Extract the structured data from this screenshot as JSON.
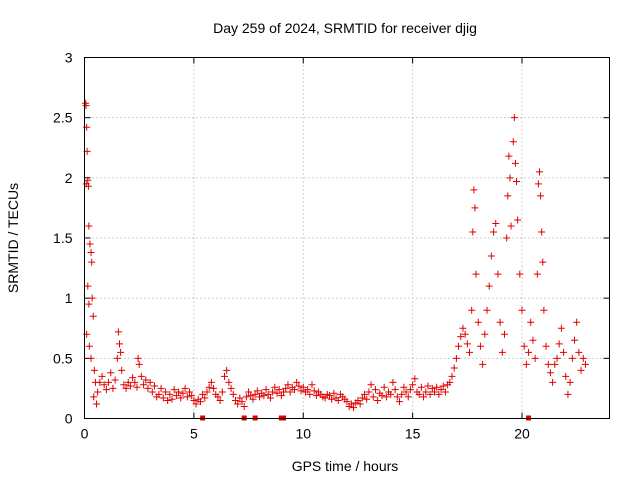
{
  "chart_data": {
    "type": "scatter",
    "title": "Day 259 of 2024, SRMTID for receiver djig",
    "xlabel": "GPS time / hours",
    "ylabel": "SRMTID / TECUs",
    "xlim": [
      0,
      24
    ],
    "ylim": [
      0,
      3
    ],
    "xticks": [
      0,
      5,
      10,
      15,
      20
    ],
    "xtick_labels": [
      "0",
      "5",
      "10",
      "15",
      "20"
    ],
    "yticks": [
      0,
      0.5,
      1,
      1.5,
      2,
      2.5,
      3
    ],
    "ytick_labels": [
      "0",
      "0.5",
      "1",
      "1.5",
      "2",
      "2.5",
      "3"
    ],
    "grid": true,
    "marker": "+",
    "series_color": "#e00000",
    "series": [
      {
        "name": "SRMTID",
        "points": [
          [
            0.05,
            2.62
          ],
          [
            0.07,
            2.6
          ],
          [
            0.1,
            2.42
          ],
          [
            0.12,
            2.22
          ],
          [
            0.08,
            1.95
          ],
          [
            0.15,
            1.98
          ],
          [
            0.18,
            1.93
          ],
          [
            0.2,
            1.6
          ],
          [
            0.25,
            1.45
          ],
          [
            0.3,
            1.38
          ],
          [
            0.33,
            1.3
          ],
          [
            0.15,
            1.1
          ],
          [
            0.35,
            1.0
          ],
          [
            0.2,
            0.95
          ],
          [
            0.4,
            0.85
          ],
          [
            0.1,
            0.7
          ],
          [
            0.22,
            0.6
          ],
          [
            0.3,
            0.5
          ],
          [
            0.45,
            0.4
          ],
          [
            0.5,
            0.3
          ],
          [
            0.42,
            0.18
          ],
          [
            0.55,
            0.12
          ],
          [
            0.6,
            0.22
          ],
          [
            0.7,
            0.3
          ],
          [
            0.8,
            0.35
          ],
          [
            0.9,
            0.28
          ],
          [
            1.0,
            0.24
          ],
          [
            1.1,
            0.3
          ],
          [
            1.2,
            0.38
          ],
          [
            1.3,
            0.25
          ],
          [
            1.4,
            0.32
          ],
          [
            1.5,
            0.5
          ],
          [
            1.55,
            0.72
          ],
          [
            1.6,
            0.62
          ],
          [
            1.65,
            0.55
          ],
          [
            1.7,
            0.4
          ],
          [
            1.8,
            0.28
          ],
          [
            1.9,
            0.25
          ],
          [
            2.0,
            0.3
          ],
          [
            2.1,
            0.27
          ],
          [
            2.2,
            0.34
          ],
          [
            2.3,
            0.3
          ],
          [
            2.4,
            0.26
          ],
          [
            2.45,
            0.5
          ],
          [
            2.5,
            0.45
          ],
          [
            2.6,
            0.35
          ],
          [
            2.7,
            0.28
          ],
          [
            2.8,
            0.32
          ],
          [
            2.9,
            0.25
          ],
          [
            3.0,
            0.3
          ],
          [
            3.1,
            0.22
          ],
          [
            3.2,
            0.27
          ],
          [
            3.3,
            0.18
          ],
          [
            3.4,
            0.2
          ],
          [
            3.5,
            0.25
          ],
          [
            3.6,
            0.17
          ],
          [
            3.7,
            0.22
          ],
          [
            3.8,
            0.15
          ],
          [
            3.9,
            0.2
          ],
          [
            4.0,
            0.16
          ],
          [
            4.1,
            0.24
          ],
          [
            4.2,
            0.19
          ],
          [
            4.3,
            0.22
          ],
          [
            4.4,
            0.17
          ],
          [
            4.5,
            0.21
          ],
          [
            4.6,
            0.25
          ],
          [
            4.7,
            0.18
          ],
          [
            4.8,
            0.22
          ],
          [
            4.9,
            0.19
          ],
          [
            5.0,
            0.15
          ],
          [
            5.1,
            0.12
          ],
          [
            5.2,
            0.16
          ],
          [
            5.3,
            0.14
          ],
          [
            5.4,
            0.2
          ],
          [
            5.5,
            0.17
          ],
          [
            5.6,
            0.22
          ],
          [
            5.7,
            0.26
          ],
          [
            5.8,
            0.3
          ],
          [
            5.9,
            0.25
          ],
          [
            6.0,
            0.2
          ],
          [
            6.1,
            0.18
          ],
          [
            6.2,
            0.15
          ],
          [
            6.3,
            0.22
          ],
          [
            6.4,
            0.35
          ],
          [
            6.5,
            0.4
          ],
          [
            6.6,
            0.3
          ],
          [
            6.7,
            0.25
          ],
          [
            6.8,
            0.2
          ],
          [
            6.9,
            0.15
          ],
          [
            7.0,
            0.12
          ],
          [
            7.1,
            0.17
          ],
          [
            7.2,
            0.14
          ],
          [
            7.3,
            0.1
          ],
          [
            7.4,
            0.18
          ],
          [
            7.5,
            0.22
          ],
          [
            7.6,
            0.19
          ],
          [
            7.7,
            0.16
          ],
          [
            7.8,
            0.2
          ],
          [
            7.9,
            0.23
          ],
          [
            8.0,
            0.18
          ],
          [
            8.1,
            0.21
          ],
          [
            8.2,
            0.19
          ],
          [
            8.3,
            0.24
          ],
          [
            8.4,
            0.2
          ],
          [
            8.5,
            0.17
          ],
          [
            8.6,
            0.22
          ],
          [
            8.7,
            0.26
          ],
          [
            8.8,
            0.21
          ],
          [
            8.9,
            0.24
          ],
          [
            9.0,
            0.19
          ],
          [
            9.1,
            0.22
          ],
          [
            9.2,
            0.25
          ],
          [
            9.3,
            0.28
          ],
          [
            9.4,
            0.22
          ],
          [
            9.5,
            0.26
          ],
          [
            9.6,
            0.24
          ],
          [
            9.7,
            0.3
          ],
          [
            9.8,
            0.27
          ],
          [
            9.9,
            0.23
          ],
          [
            10.0,
            0.26
          ],
          [
            10.1,
            0.22
          ],
          [
            10.2,
            0.24
          ],
          [
            10.3,
            0.2
          ],
          [
            10.4,
            0.28
          ],
          [
            10.5,
            0.23
          ],
          [
            10.6,
            0.19
          ],
          [
            10.7,
            0.22
          ],
          [
            10.8,
            0.2
          ],
          [
            10.9,
            0.18
          ],
          [
            11.0,
            0.17
          ],
          [
            11.1,
            0.2
          ],
          [
            11.2,
            0.19
          ],
          [
            11.3,
            0.16
          ],
          [
            11.4,
            0.21
          ],
          [
            11.5,
            0.17
          ],
          [
            11.6,
            0.15
          ],
          [
            11.7,
            0.2
          ],
          [
            11.8,
            0.18
          ],
          [
            11.9,
            0.16
          ],
          [
            12.0,
            0.14
          ],
          [
            12.1,
            0.1
          ],
          [
            12.2,
            0.12
          ],
          [
            12.3,
            0.09
          ],
          [
            12.4,
            0.13
          ],
          [
            12.5,
            0.15
          ],
          [
            12.6,
            0.12
          ],
          [
            12.7,
            0.17
          ],
          [
            12.8,
            0.2
          ],
          [
            12.9,
            0.16
          ],
          [
            13.0,
            0.22
          ],
          [
            13.1,
            0.28
          ],
          [
            13.2,
            0.18
          ],
          [
            13.3,
            0.24
          ],
          [
            13.4,
            0.15
          ],
          [
            13.5,
            0.21
          ],
          [
            13.6,
            0.19
          ],
          [
            13.7,
            0.26
          ],
          [
            13.8,
            0.18
          ],
          [
            13.9,
            0.22
          ],
          [
            14.0,
            0.2
          ],
          [
            14.1,
            0.3
          ],
          [
            14.2,
            0.24
          ],
          [
            14.3,
            0.18
          ],
          [
            14.4,
            0.14
          ],
          [
            14.5,
            0.2
          ],
          [
            14.6,
            0.26
          ],
          [
            14.7,
            0.22
          ],
          [
            14.8,
            0.18
          ],
          [
            14.9,
            0.24
          ],
          [
            15.0,
            0.28
          ],
          [
            15.1,
            0.33
          ],
          [
            15.2,
            0.22
          ],
          [
            15.3,
            0.2
          ],
          [
            15.4,
            0.26
          ],
          [
            15.5,
            0.18
          ],
          [
            15.6,
            0.22
          ],
          [
            15.7,
            0.27
          ],
          [
            15.8,
            0.2
          ],
          [
            15.9,
            0.25
          ],
          [
            16.0,
            0.22
          ],
          [
            16.1,
            0.26
          ],
          [
            16.2,
            0.2
          ],
          [
            16.3,
            0.24
          ],
          [
            16.4,
            0.27
          ],
          [
            16.5,
            0.22
          ],
          [
            16.6,
            0.28
          ],
          [
            16.7,
            0.3
          ],
          [
            16.8,
            0.35
          ],
          [
            16.9,
            0.42
          ],
          [
            17.0,
            0.5
          ],
          [
            17.1,
            0.6
          ],
          [
            17.2,
            0.68
          ],
          [
            17.3,
            0.75
          ],
          [
            17.4,
            0.7
          ],
          [
            17.5,
            0.62
          ],
          [
            17.6,
            0.55
          ],
          [
            17.7,
            0.9
          ],
          [
            17.75,
            1.55
          ],
          [
            17.8,
            1.9
          ],
          [
            17.85,
            1.75
          ],
          [
            17.9,
            1.2
          ],
          [
            18.0,
            0.8
          ],
          [
            18.1,
            0.6
          ],
          [
            18.2,
            0.45
          ],
          [
            18.3,
            0.7
          ],
          [
            18.4,
            0.9
          ],
          [
            18.5,
            1.1
          ],
          [
            18.6,
            1.35
          ],
          [
            18.7,
            1.55
          ],
          [
            18.8,
            1.62
          ],
          [
            18.9,
            1.2
          ],
          [
            19.0,
            0.8
          ],
          [
            19.1,
            0.55
          ],
          [
            19.2,
            0.7
          ],
          [
            19.3,
            1.5
          ],
          [
            19.35,
            1.85
          ],
          [
            19.4,
            2.18
          ],
          [
            19.45,
            2.0
          ],
          [
            19.5,
            1.6
          ],
          [
            19.6,
            2.3
          ],
          [
            19.65,
            2.5
          ],
          [
            19.7,
            2.12
          ],
          [
            19.75,
            1.97
          ],
          [
            19.8,
            1.65
          ],
          [
            19.9,
            1.2
          ],
          [
            20.0,
            0.9
          ],
          [
            20.1,
            0.6
          ],
          [
            20.2,
            0.45
          ],
          [
            20.3,
            0.55
          ],
          [
            20.4,
            0.8
          ],
          [
            20.5,
            0.65
          ],
          [
            20.6,
            0.5
          ],
          [
            20.7,
            1.2
          ],
          [
            20.75,
            1.95
          ],
          [
            20.8,
            2.05
          ],
          [
            20.85,
            1.85
          ],
          [
            20.9,
            1.55
          ],
          [
            20.95,
            1.3
          ],
          [
            21.0,
            0.9
          ],
          [
            21.1,
            0.6
          ],
          [
            21.2,
            0.45
          ],
          [
            21.3,
            0.38
          ],
          [
            21.4,
            0.3
          ],
          [
            21.5,
            0.45
          ],
          [
            21.6,
            0.5
          ],
          [
            21.7,
            0.62
          ],
          [
            21.8,
            0.75
          ],
          [
            21.9,
            0.55
          ],
          [
            22.0,
            0.35
          ],
          [
            22.1,
            0.2
          ],
          [
            22.2,
            0.3
          ],
          [
            22.3,
            0.5
          ],
          [
            22.4,
            0.65
          ],
          [
            22.5,
            0.8
          ],
          [
            22.6,
            0.55
          ],
          [
            22.7,
            0.4
          ],
          [
            22.8,
            0.5
          ],
          [
            22.9,
            0.45
          ]
        ]
      }
    ],
    "baseline_marks": [
      5.4,
      7.3,
      7.8,
      9.0,
      9.1,
      20.3
    ]
  }
}
